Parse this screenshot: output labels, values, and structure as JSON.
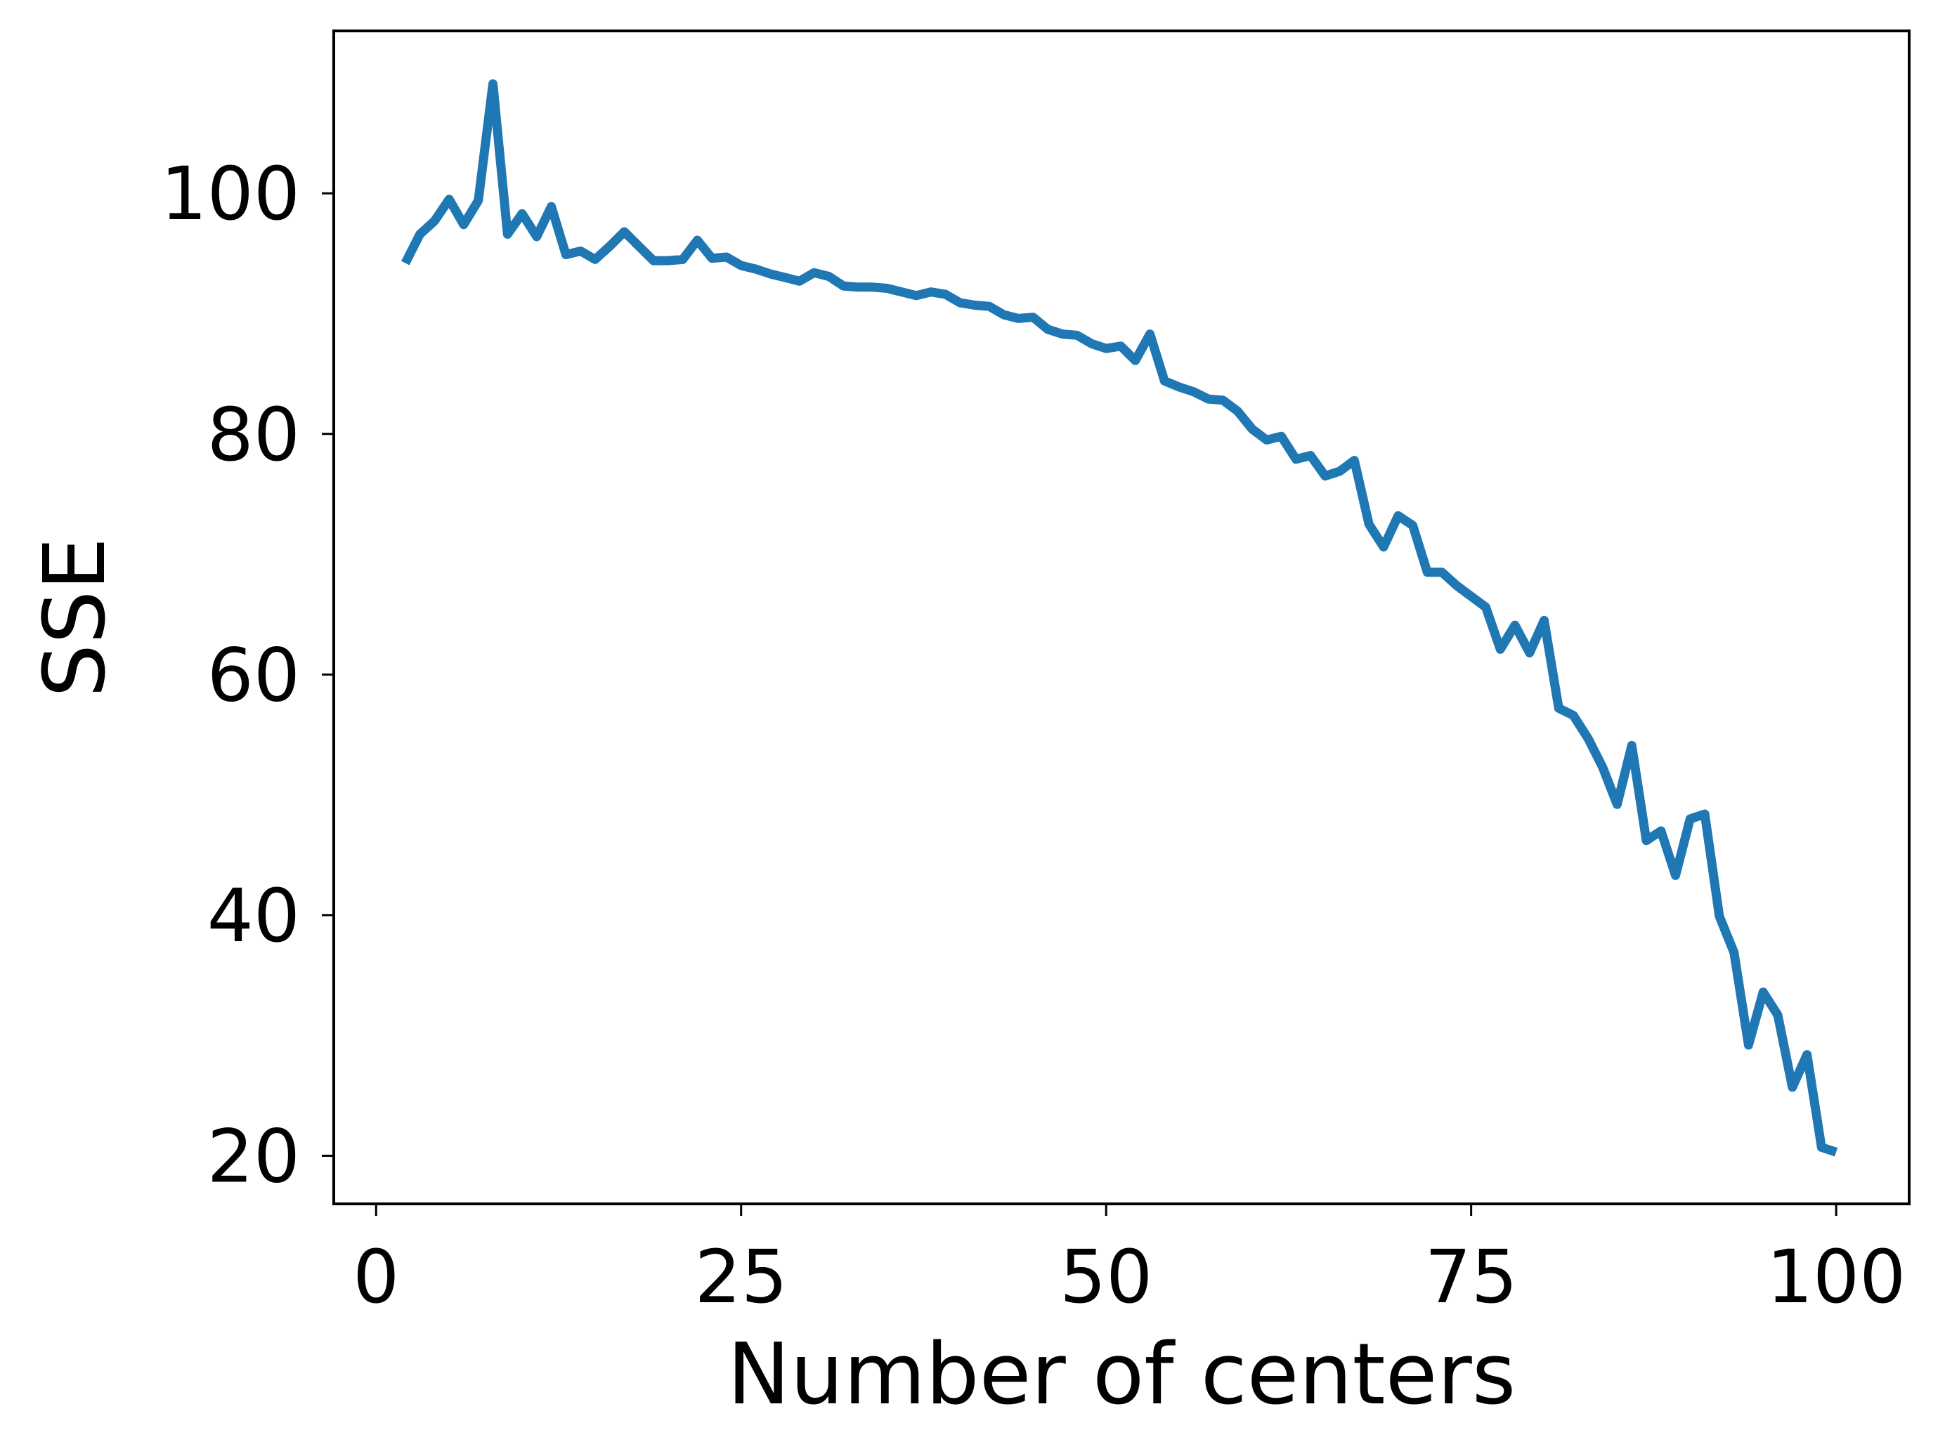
{
  "chart_data": {
    "type": "line",
    "xlabel": "Number of centers",
    "ylabel": "SSE",
    "xlim": [
      -2.9,
      105
    ],
    "ylim": [
      16,
      113.5
    ],
    "xticks": [
      0,
      25,
      50,
      75,
      100
    ],
    "yticks": [
      20,
      40,
      60,
      80,
      100
    ],
    "grid": false,
    "legend": "none",
    "series": [
      {
        "color": "#1f77b4",
        "x": [
          2,
          3,
          4,
          5,
          6,
          7,
          8,
          9,
          10,
          11,
          12,
          13,
          14,
          15,
          16,
          17,
          18,
          19,
          20,
          21,
          22,
          23,
          24,
          25,
          26,
          27,
          28,
          29,
          30,
          31,
          32,
          33,
          34,
          35,
          36,
          37,
          38,
          39,
          40,
          41,
          42,
          43,
          44,
          45,
          46,
          47,
          48,
          49,
          50,
          51,
          52,
          53,
          54,
          55,
          56,
          57,
          58,
          59,
          60,
          61,
          62,
          63,
          64,
          65,
          66,
          67,
          68,
          69,
          70,
          71,
          72,
          73,
          74,
          75,
          76,
          77,
          78,
          79,
          80,
          81,
          82,
          83,
          84,
          85,
          86,
          87,
          88,
          89,
          90,
          91,
          92,
          93,
          94,
          95,
          96,
          97,
          98,
          99,
          100
        ],
        "values": [
          94.2,
          96.6,
          97.7,
          99.5,
          97.4,
          99.4,
          109.1,
          96.6,
          98.3,
          96.4,
          98.9,
          94.9,
          95.2,
          94.5,
          95.6,
          96.8,
          95.6,
          94.4,
          94.4,
          94.5,
          96.1,
          94.6,
          94.7,
          94.0,
          93.7,
          93.3,
          93.0,
          92.7,
          93.4,
          93.1,
          92.3,
          92.2,
          92.2,
          92.1,
          91.8,
          91.5,
          91.8,
          91.6,
          90.9,
          90.7,
          90.6,
          89.9,
          89.6,
          89.7,
          88.7,
          88.3,
          88.2,
          87.5,
          87.1,
          87.3,
          86.1,
          88.3,
          84.4,
          83.9,
          83.5,
          82.9,
          82.8,
          81.9,
          80.4,
          79.5,
          79.8,
          77.9,
          78.2,
          76.5,
          76.9,
          77.8,
          72.5,
          70.6,
          73.2,
          72.4,
          68.5,
          68.5,
          67.4,
          66.5,
          65.6,
          62.1,
          64.1,
          61.8,
          64.5,
          57.2,
          56.6,
          54.7,
          52.3,
          49.2,
          54.1,
          46.2,
          47.0,
          43.3,
          48.0,
          48.4,
          39.9,
          36.9,
          29.2,
          33.6,
          31.7,
          25.7,
          28.4,
          20.7,
          20.3
        ]
      }
    ]
  }
}
